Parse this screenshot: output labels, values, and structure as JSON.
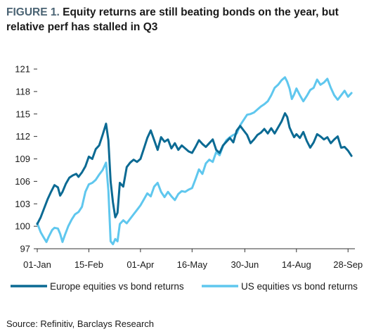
{
  "title_prefix": "FIGURE 1.",
  "title_text": "Equity returns are still beating bonds on the year, but relative perf has stalled in Q3",
  "source": "Source: Refinitiv, Barclays Research",
  "chart_data": {
    "type": "line",
    "title": "FIGURE 1. Equity returns are still beating bonds on the year, but relative perf has stalled in Q3",
    "xlabel": "",
    "ylabel": "",
    "x_tick_labels": [
      "01-Jan",
      "15-Feb",
      "01-Apr",
      "16-May",
      "30-Jun",
      "14-Aug",
      "28-Sep"
    ],
    "x_tick_days": [
      0,
      45,
      90,
      135,
      181,
      226,
      271
    ],
    "xlim_days": [
      0,
      277
    ],
    "ylim": [
      97,
      121
    ],
    "y_ticks": [
      97,
      100,
      103,
      106,
      109,
      112,
      115,
      118,
      121
    ],
    "grid": false,
    "legend_position": "bottom",
    "series": [
      {
        "name": "Europe equities vs bond returns",
        "color": "#0b6a93",
        "points": [
          [
            0,
            100.3
          ],
          [
            3,
            101.2
          ],
          [
            6,
            102.4
          ],
          [
            9,
            103.6
          ],
          [
            12,
            104.6
          ],
          [
            15,
            105.5
          ],
          [
            18,
            105.2
          ],
          [
            20,
            104.1
          ],
          [
            22,
            104.6
          ],
          [
            25,
            105.7
          ],
          [
            28,
            106.5
          ],
          [
            31,
            106.8
          ],
          [
            34,
            107.0
          ],
          [
            36,
            106.6
          ],
          [
            39,
            107.2
          ],
          [
            42,
            108.0
          ],
          [
            45,
            109.3
          ],
          [
            48,
            109.0
          ],
          [
            51,
            110.3
          ],
          [
            54,
            110.8
          ],
          [
            57,
            112.2
          ],
          [
            60,
            113.7
          ],
          [
            62,
            111.5
          ],
          [
            64,
            106.0
          ],
          [
            66,
            103.2
          ],
          [
            68,
            101.2
          ],
          [
            70,
            101.8
          ],
          [
            72,
            105.8
          ],
          [
            75,
            105.3
          ],
          [
            78,
            107.9
          ],
          [
            81,
            108.5
          ],
          [
            84,
            108.9
          ],
          [
            87,
            108.6
          ],
          [
            90,
            109.0
          ],
          [
            93,
            110.4
          ],
          [
            96,
            111.8
          ],
          [
            99,
            112.8
          ],
          [
            102,
            111.5
          ],
          [
            105,
            110.2
          ],
          [
            108,
            111.9
          ],
          [
            111,
            111.3
          ],
          [
            114,
            111.6
          ],
          [
            117,
            110.4
          ],
          [
            120,
            111.1
          ],
          [
            123,
            110.2
          ],
          [
            126,
            110.8
          ],
          [
            129,
            110.4
          ],
          [
            132,
            110.0
          ],
          [
            135,
            109.8
          ],
          [
            138,
            110.6
          ],
          [
            141,
            111.5
          ],
          [
            144,
            111.0
          ],
          [
            147,
            110.6
          ],
          [
            150,
            111.1
          ],
          [
            153,
            111.6
          ],
          [
            156,
            110.2
          ],
          [
            159,
            109.8
          ],
          [
            162,
            110.8
          ],
          [
            165,
            111.3
          ],
          [
            168,
            111.8
          ],
          [
            171,
            111.2
          ],
          [
            174,
            112.8
          ],
          [
            177,
            113.4
          ],
          [
            180,
            112.8
          ],
          [
            183,
            112.2
          ],
          [
            186,
            111.1
          ],
          [
            189,
            111.6
          ],
          [
            192,
            112.2
          ],
          [
            195,
            112.5
          ],
          [
            198,
            113.0
          ],
          [
            201,
            112.4
          ],
          [
            204,
            113.1
          ],
          [
            207,
            112.4
          ],
          [
            210,
            113.2
          ],
          [
            213,
            114.0
          ],
          [
            216,
            115.1
          ],
          [
            218,
            114.6
          ],
          [
            220,
            113.2
          ],
          [
            222,
            112.5
          ],
          [
            224,
            111.9
          ],
          [
            226,
            112.3
          ],
          [
            229,
            111.8
          ],
          [
            232,
            112.6
          ],
          [
            235,
            111.4
          ],
          [
            238,
            110.5
          ],
          [
            241,
            111.2
          ],
          [
            244,
            112.3
          ],
          [
            247,
            112.0
          ],
          [
            250,
            111.6
          ],
          [
            253,
            111.9
          ],
          [
            256,
            111.1
          ],
          [
            259,
            111.6
          ],
          [
            262,
            112.0
          ],
          [
            265,
            110.5
          ],
          [
            268,
            110.6
          ],
          [
            271,
            110.1
          ],
          [
            274,
            109.4
          ]
        ]
      },
      {
        "name": "US equities vs bond returns",
        "color": "#5fc7ee",
        "points": [
          [
            0,
            100.4
          ],
          [
            3,
            99.2
          ],
          [
            6,
            98.4
          ],
          [
            8,
            97.9
          ],
          [
            10,
            98.6
          ],
          [
            13,
            99.5
          ],
          [
            15,
            99.8
          ],
          [
            18,
            99.7
          ],
          [
            20,
            99.0
          ],
          [
            22,
            97.9
          ],
          [
            24,
            98.8
          ],
          [
            27,
            100.0
          ],
          [
            30,
            100.9
          ],
          [
            33,
            101.6
          ],
          [
            36,
            101.9
          ],
          [
            39,
            102.6
          ],
          [
            42,
            104.6
          ],
          [
            45,
            105.6
          ],
          [
            48,
            105.8
          ],
          [
            51,
            106.2
          ],
          [
            54,
            106.9
          ],
          [
            57,
            107.5
          ],
          [
            60,
            108.5
          ],
          [
            62,
            104.8
          ],
          [
            64,
            98.0
          ],
          [
            66,
            97.6
          ],
          [
            68,
            98.3
          ],
          [
            70,
            98.0
          ],
          [
            72,
            100.3
          ],
          [
            75,
            100.8
          ],
          [
            78,
            100.4
          ],
          [
            81,
            101.0
          ],
          [
            84,
            101.6
          ],
          [
            87,
            102.2
          ],
          [
            90,
            102.8
          ],
          [
            93,
            103.6
          ],
          [
            96,
            104.4
          ],
          [
            99,
            104.0
          ],
          [
            102,
            105.3
          ],
          [
            105,
            105.8
          ],
          [
            108,
            104.6
          ],
          [
            111,
            103.9
          ],
          [
            114,
            104.6
          ],
          [
            117,
            104.0
          ],
          [
            120,
            103.5
          ],
          [
            123,
            104.3
          ],
          [
            126,
            104.7
          ],
          [
            129,
            104.6
          ],
          [
            132,
            104.9
          ],
          [
            135,
            105.1
          ],
          [
            138,
            106.3
          ],
          [
            141,
            107.6
          ],
          [
            144,
            107.0
          ],
          [
            147,
            108.4
          ],
          [
            150,
            108.9
          ],
          [
            153,
            108.6
          ],
          [
            156,
            109.9
          ],
          [
            159,
            109.5
          ],
          [
            162,
            110.7
          ],
          [
            165,
            111.5
          ],
          [
            168,
            111.9
          ],
          [
            171,
            112.2
          ],
          [
            174,
            112.4
          ],
          [
            177,
            113.5
          ],
          [
            180,
            114.2
          ],
          [
            183,
            114.9
          ],
          [
            186,
            115.0
          ],
          [
            189,
            115.2
          ],
          [
            192,
            115.6
          ],
          [
            195,
            116.0
          ],
          [
            198,
            116.3
          ],
          [
            201,
            116.7
          ],
          [
            204,
            117.5
          ],
          [
            207,
            118.5
          ],
          [
            210,
            118.9
          ],
          [
            213,
            119.5
          ],
          [
            216,
            119.9
          ],
          [
            218,
            119.3
          ],
          [
            220,
            118.4
          ],
          [
            222,
            117.0
          ],
          [
            224,
            117.6
          ],
          [
            226,
            118.4
          ],
          [
            229,
            117.5
          ],
          [
            232,
            116.7
          ],
          [
            235,
            117.4
          ],
          [
            238,
            118.2
          ],
          [
            241,
            118.5
          ],
          [
            244,
            119.6
          ],
          [
            247,
            118.9
          ],
          [
            250,
            119.2
          ],
          [
            253,
            119.7
          ],
          [
            256,
            118.5
          ],
          [
            259,
            117.5
          ],
          [
            262,
            116.9
          ],
          [
            265,
            117.5
          ],
          [
            268,
            118.1
          ],
          [
            271,
            117.3
          ],
          [
            274,
            117.8
          ]
        ]
      }
    ]
  }
}
